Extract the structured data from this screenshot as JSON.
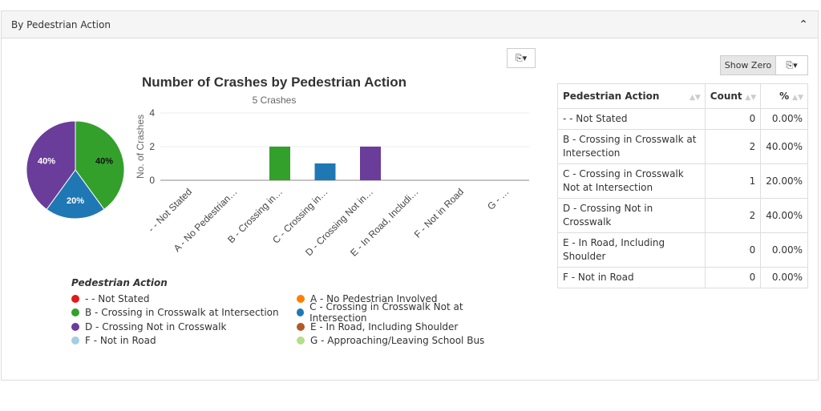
{
  "panel": {
    "title": "By Pedestrian Action",
    "collapse_icon": "chevron-up-icon"
  },
  "toolbar": {
    "show_zero_label": "Show Zero",
    "export_icon": "export-icon"
  },
  "chart_data": {
    "type": "bar",
    "title": "Number of Crashes by Pedestrian Action",
    "subtitle": "5 Crashes",
    "ylabel": "No. of Crashes",
    "ylim": [
      0,
      4
    ],
    "yticks": [
      0,
      2,
      4
    ],
    "categories": [
      "- - Not Stated",
      "A - No Pedestrian…",
      "B - Crossing in…",
      "C - Crossing in…",
      "D - Crossing Not in…",
      "E - In Road, Includi…",
      "F - Not in Road",
      "G - …"
    ],
    "values": [
      0,
      0,
      2,
      1,
      2,
      0,
      0,
      0
    ],
    "colors": [
      "#e31a1c",
      "#ff7f00",
      "#33a02c",
      "#1f78b4",
      "#6a3d9a",
      "#b15928",
      "#a6cee3",
      "#b2df8a"
    ],
    "pie": {
      "slices": [
        {
          "label": "B",
          "value": 40,
          "text": "40%",
          "color": "#33a02c"
        },
        {
          "label": "C",
          "value": 20,
          "text": "20%",
          "color": "#1f78b4"
        },
        {
          "label": "D",
          "value": 40,
          "text": "40%",
          "color": "#6a3d9a"
        }
      ]
    },
    "legend": {
      "title": "Pedestrian Action",
      "items": [
        "- - Not Stated",
        "A - No Pedestrian Involved",
        "B - Crossing in Crosswalk at Intersection",
        "C - Crossing in Crosswalk Not at Intersection",
        "D - Crossing Not in Crosswalk",
        "E - In Road, Including Shoulder",
        "F - Not in Road",
        "G - Approaching/Leaving School Bus"
      ]
    }
  },
  "table": {
    "headers": [
      "Pedestrian Action",
      "Count",
      "%"
    ],
    "rows": [
      [
        "- - Not Stated",
        "0",
        "0.00%"
      ],
      [
        "B - Crossing in Crosswalk at Intersection",
        "2",
        "40.00%"
      ],
      [
        "C - Crossing in Crosswalk Not at Intersection",
        "1",
        "20.00%"
      ],
      [
        "D - Crossing Not in Crosswalk",
        "2",
        "40.00%"
      ],
      [
        "E - In Road, Including Shoulder",
        "0",
        "0.00%"
      ],
      [
        "F - Not in Road",
        "0",
        "0.00%"
      ]
    ]
  }
}
